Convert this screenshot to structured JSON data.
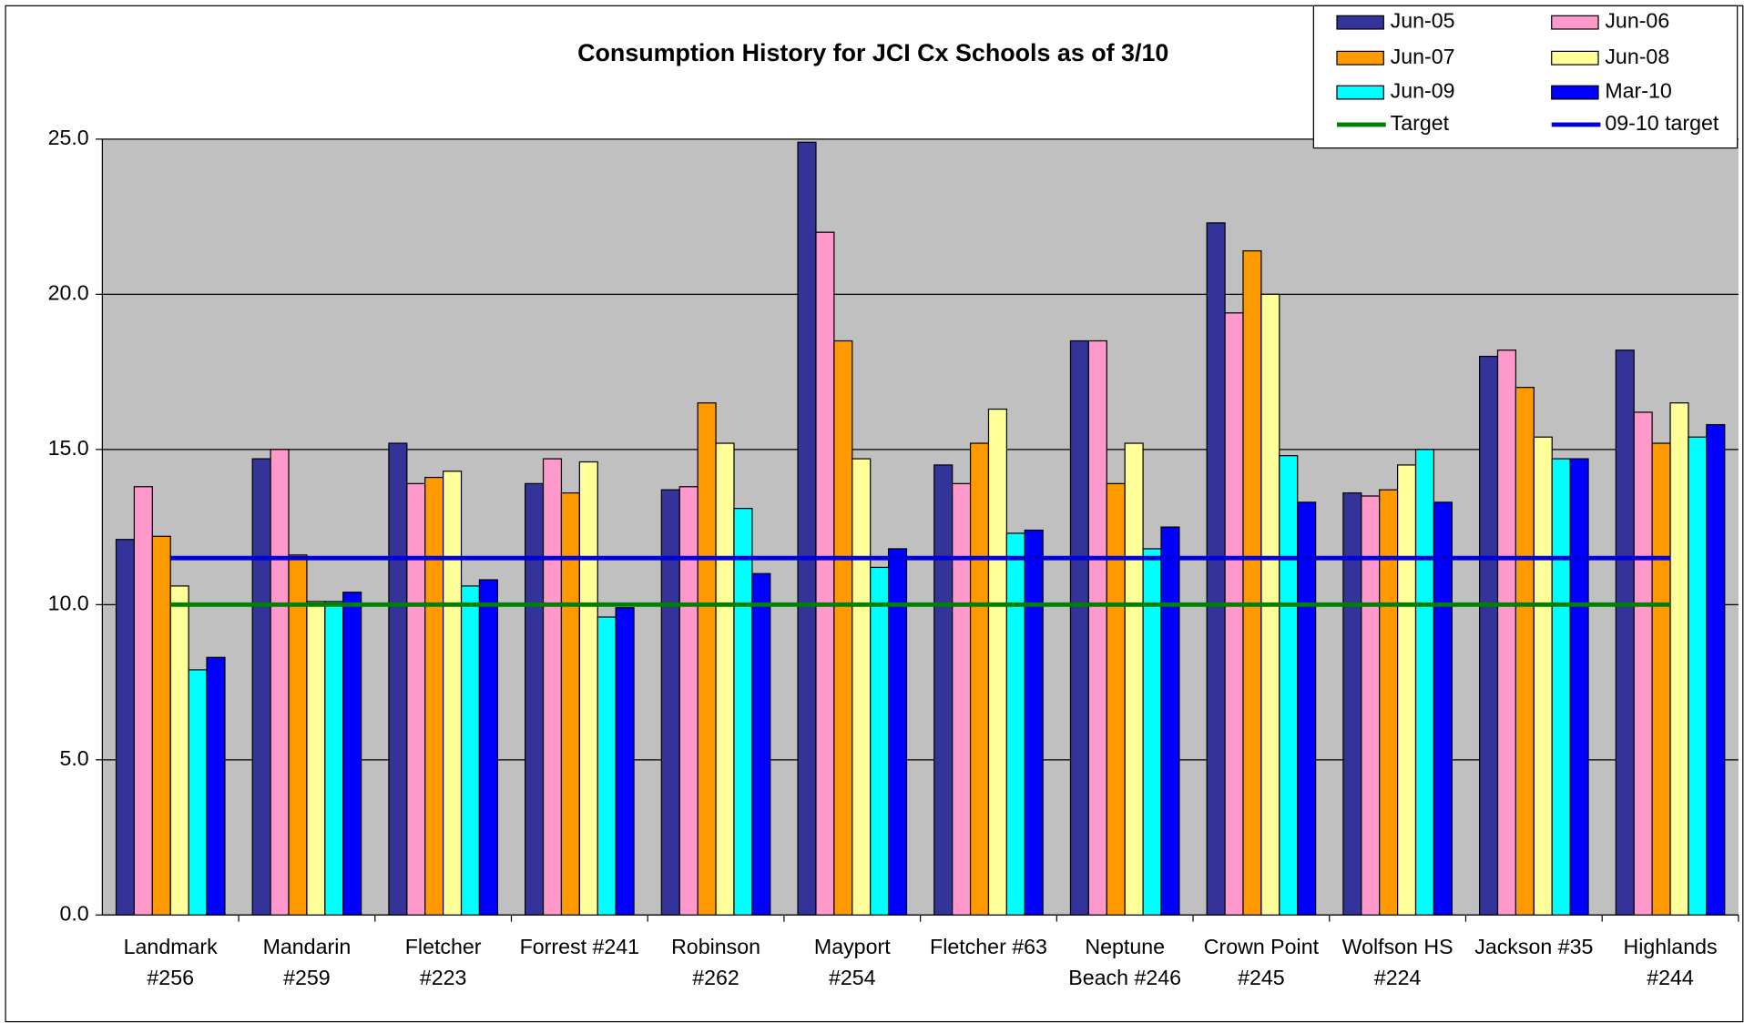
{
  "chart_data": {
    "type": "bar",
    "title": "Consumption History for JCI Cx Schools as of 3/10",
    "categories": [
      "Landmark\n#256",
      "Mandarin\n#259",
      "Fletcher\n#223",
      "Forrest #241",
      "Robinson\n#262",
      "Mayport\n#254",
      "Fletcher #63",
      "Neptune\nBeach #246",
      "Crown Point\n#245",
      "Wolfson HS\n#224",
      "Jackson #35",
      "Highlands\n#244"
    ],
    "series": [
      {
        "name": "Jun-05",
        "color": "#333399",
        "values": [
          12.1,
          14.7,
          15.2,
          13.9,
          13.7,
          24.9,
          14.5,
          18.5,
          22.3,
          13.6,
          18.0,
          18.2
        ]
      },
      {
        "name": "Jun-06",
        "color": "#ff99cc",
        "values": [
          13.8,
          15.0,
          13.9,
          14.7,
          13.8,
          22.0,
          13.9,
          18.5,
          19.4,
          13.5,
          18.2,
          16.2
        ]
      },
      {
        "name": "Jun-07",
        "color": "#ff9900",
        "values": [
          12.2,
          11.6,
          14.1,
          13.6,
          16.5,
          18.5,
          15.2,
          13.9,
          21.4,
          13.7,
          17.0,
          15.2
        ]
      },
      {
        "name": "Jun-08",
        "color": "#ffff99",
        "values": [
          10.6,
          10.1,
          14.3,
          14.6,
          15.2,
          14.7,
          16.3,
          15.2,
          20.0,
          14.5,
          15.4,
          16.5
        ]
      },
      {
        "name": "Jun-09",
        "color": "#00ffff",
        "values": [
          7.9,
          10.1,
          10.6,
          9.6,
          13.1,
          11.2,
          12.3,
          11.8,
          14.8,
          15.0,
          14.7,
          15.4
        ]
      },
      {
        "name": "Mar-10",
        "color": "#0000ff",
        "values": [
          8.3,
          10.4,
          10.8,
          9.9,
          11.0,
          11.8,
          12.4,
          12.5,
          13.3,
          13.3,
          14.7,
          15.8
        ]
      }
    ],
    "lines": [
      {
        "name": "Target",
        "color": "#008000",
        "value": 10.0
      },
      {
        "name": "09-10 target",
        "color": "#0000dd",
        "value": 11.5
      }
    ],
    "ylim": [
      0,
      25
    ],
    "yticks": [
      {
        "value": 0,
        "label": "0.0"
      },
      {
        "value": 5,
        "label": "5.0"
      },
      {
        "value": 10,
        "label": "10.0"
      },
      {
        "value": 15,
        "label": "15.0"
      },
      {
        "value": 20,
        "label": "20.0"
      },
      {
        "value": 25,
        "label": "25.0"
      }
    ],
    "grid": true
  }
}
